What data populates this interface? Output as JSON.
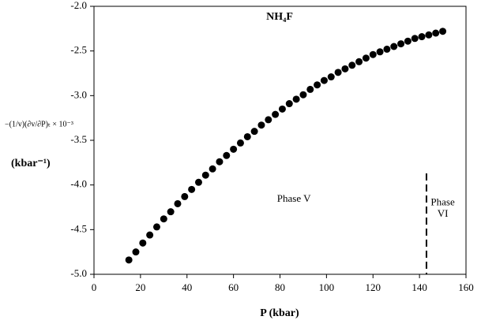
{
  "chart_data": {
    "type": "scatter",
    "title": "NH₄F",
    "x_label": "P (kbar)",
    "y_label_formula": "−(1/v)(∂v/∂P)ₜ × 10⁻³",
    "y_label": "(kbar⁻¹)",
    "xlim": [
      0,
      160
    ],
    "xticks": [
      0,
      20,
      40,
      60,
      80,
      100,
      120,
      140,
      160
    ],
    "ylim": [
      -5,
      -2
    ],
    "yticks": [
      {
        "value": -5,
        "label": "-5.0"
      },
      {
        "value": -4.5,
        "label": "-4.5"
      },
      {
        "value": -4,
        "label": "-4.0"
      },
      {
        "value": -3.5,
        "label": "-3.5"
      },
      {
        "value": -3,
        "label": "-3.0"
      },
      {
        "value": -2.5,
        "label": "-2.5"
      },
      {
        "value": -2,
        "label": "-2.0"
      }
    ],
    "color": "#000000",
    "x": [
      15,
      18,
      21,
      24,
      27,
      30,
      33,
      36,
      39,
      42,
      45,
      48,
      51,
      54,
      57,
      60,
      63,
      66,
      69,
      72,
      75,
      78,
      81,
      84,
      87,
      90,
      93,
      96,
      99,
      102,
      105,
      108,
      111,
      114,
      117,
      120,
      123,
      126,
      129,
      132,
      135,
      138,
      141,
      144,
      147,
      150
    ],
    "values": [
      -4.84,
      -4.75,
      -4.65,
      -4.56,
      -4.47,
      -4.38,
      -4.3,
      -4.21,
      -4.13,
      -4.05,
      -3.97,
      -3.89,
      -3.82,
      -3.74,
      -3.67,
      -3.6,
      -3.53,
      -3.46,
      -3.4,
      -3.33,
      -3.27,
      -3.21,
      -3.15,
      -3.09,
      -3.04,
      -2.99,
      -2.93,
      -2.88,
      -2.83,
      -2.79,
      -2.74,
      -2.7,
      -2.66,
      -2.62,
      -2.58,
      -2.54,
      -2.51,
      -2.48,
      -2.45,
      -2.42,
      -2.39,
      -2.36,
      -2.34,
      -2.32,
      -2.3,
      -2.28
    ],
    "phase_boundary": 143,
    "annotations": [
      {
        "text": "Phase V",
        "x": 86,
        "y": -4.16
      },
      {
        "text": "Phase",
        "x": 150,
        "y": -4.2
      },
      {
        "text": "VI",
        "x": 150,
        "y": -4.33
      }
    ]
  }
}
